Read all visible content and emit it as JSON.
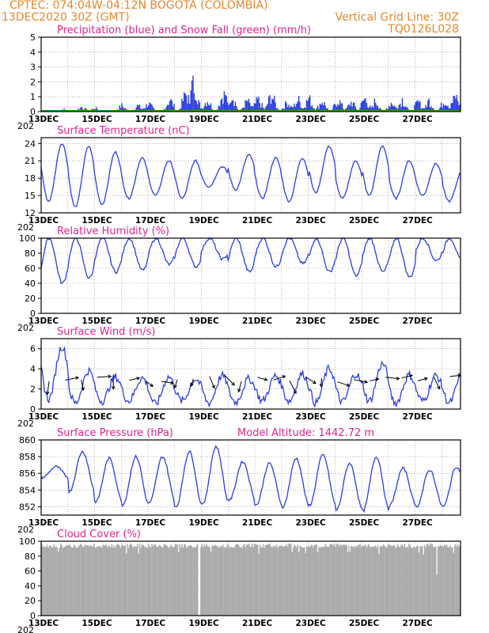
{
  "header": {
    "line1_left": "CPTEC:   074:04W-04:12N  BOGOTA (COLOMBIA)",
    "line2_left": "13DEC2020 30Z (GMT)",
    "line2_right": "Vertical Grid Line: 30Z",
    "line3_right": "TQ0126L028"
  },
  "colors": {
    "title": "#e0238f",
    "header": "#e8862a",
    "series": "#2b3fe0",
    "snow": "#1fa82a",
    "cloud": "#aaaaaa",
    "grid": "#888888"
  },
  "x_ticks": [
    "13DEC",
    "15DEC",
    "17DEC",
    "19DEC",
    "21DEC",
    "23DEC",
    "25DEC",
    "27DEC"
  ],
  "x_year_stub": "202",
  "chart_data": [
    {
      "type": "bar",
      "title": "Precipitation (blue) and Snow Fall (green) (mm/h)",
      "ylim": [
        0,
        5
      ],
      "yticks": [
        0,
        1,
        2,
        3,
        4,
        5
      ],
      "grid": true,
      "series": [
        {
          "name": "Precipitation",
          "color": "#2b3fe0",
          "peaks": [
            [
              0.8,
              0.2
            ],
            [
              1.5,
              0.4
            ],
            [
              2.0,
              0.3
            ],
            [
              3.0,
              0.5
            ],
            [
              3.6,
              0.5
            ],
            [
              4.0,
              0.7
            ],
            [
              4.8,
              1.0
            ],
            [
              5.4,
              1.5
            ],
            [
              5.7,
              2.5
            ],
            [
              6.2,
              1.0
            ],
            [
              6.8,
              1.5
            ],
            [
              7.1,
              1.6
            ],
            [
              7.7,
              0.9
            ],
            [
              8.1,
              1.0
            ],
            [
              8.6,
              1.4
            ],
            [
              9.2,
              0.8
            ],
            [
              9.6,
              1.0
            ],
            [
              10.0,
              1.1
            ],
            [
              10.5,
              0.9
            ],
            [
              11.1,
              1.0
            ],
            [
              11.6,
              0.8
            ],
            [
              12.1,
              1.1
            ],
            [
              12.5,
              0.9
            ],
            [
              13.1,
              0.8
            ],
            [
              13.5,
              1.0
            ],
            [
              14.1,
              0.8
            ],
            [
              14.5,
              0.9
            ],
            [
              15.1,
              1.0
            ],
            [
              15.5,
              1.3
            ]
          ]
        },
        {
          "name": "Snow Fall",
          "color": "#1fa82a",
          "constant": 0
        }
      ]
    },
    {
      "type": "line",
      "title": "Surface Temperature (nC)",
      "ylim": [
        12,
        25
      ],
      "yticks": [
        12,
        15,
        18,
        21,
        24
      ],
      "grid": true,
      "days": {
        "mins": [
          14.0,
          13.0,
          13.5,
          14.5,
          15.0,
          14.5,
          16.5,
          16.0,
          14.5,
          14.0,
          15.5,
          14.5,
          15.0,
          14.5,
          15.0,
          14.0
        ],
        "maxs": [
          24.0,
          23.5,
          22.5,
          21.5,
          21.0,
          21.0,
          20.0,
          22.0,
          21.5,
          21.5,
          23.5,
          21.0,
          23.5,
          21.0,
          20.5,
          19.5
        ]
      }
    },
    {
      "type": "line",
      "title": "Relative Humidity (%)",
      "ylim": [
        0,
        100
      ],
      "yticks": [
        0,
        20,
        40,
        60,
        80,
        100
      ],
      "grid": true,
      "days": {
        "mins": [
          40,
          47,
          55,
          57,
          65,
          62,
          72,
          55,
          62,
          66,
          55,
          50,
          55,
          48,
          70,
          66
        ],
        "maxs": [
          100,
          100,
          100,
          100,
          100,
          100,
          100,
          100,
          100,
          100,
          100,
          100,
          100,
          100,
          100,
          100
        ]
      }
    },
    {
      "type": "line",
      "title": "Surface Wind (m/s)",
      "ylim": [
        0,
        7
      ],
      "yticks": [
        0,
        2,
        4,
        6
      ],
      "grid": true,
      "days": {
        "mins": [
          1.0,
          0.6,
          0.8,
          0.8,
          0.5,
          0.8,
          0.6,
          0.7,
          0.8,
          0.8,
          0.6,
          0.7,
          0.8,
          0.6,
          0.8,
          0.6
        ],
        "maxs": [
          6.2,
          3.8,
          3.2,
          3.1,
          3.2,
          3.0,
          3.3,
          3.0,
          3.3,
          3.5,
          4.0,
          3.5,
          4.5,
          3.4,
          3.3,
          3.6
        ]
      }
    },
    {
      "type": "line",
      "title": "Surface Pressure (hPa)",
      "subtitle": "Model Altitude: 1442.72  m",
      "ylim": [
        851,
        860
      ],
      "yticks": [
        852,
        854,
        856,
        858,
        860
      ],
      "grid": true,
      "days": {
        "mins": [
          855.5,
          853.8,
          852.6,
          852.2,
          852.5,
          852.0,
          852.3,
          852.8,
          852.2,
          852.0,
          852.2,
          851.6,
          851.5,
          852.2,
          852.0,
          852.0
        ],
        "maxs": [
          856.8,
          858.6,
          857.8,
          858.0,
          858.0,
          858.6,
          859.2,
          857.4,
          857.2,
          857.8,
          858.2,
          857.2,
          858.0,
          856.6,
          856.4,
          856.8
        ]
      }
    },
    {
      "type": "bar",
      "title": "Cloud Cover (%)",
      "ylim": [
        0,
        100
      ],
      "yticks": [
        0,
        20,
        40,
        60,
        80,
        100
      ],
      "grid": true,
      "series": [
        {
          "name": "Cloud Cover",
          "color": "#aaaaaa",
          "typical": 97,
          "low_points": [
            [
              5.9,
              0
            ],
            [
              14.8,
              55
            ]
          ]
        }
      ]
    }
  ]
}
